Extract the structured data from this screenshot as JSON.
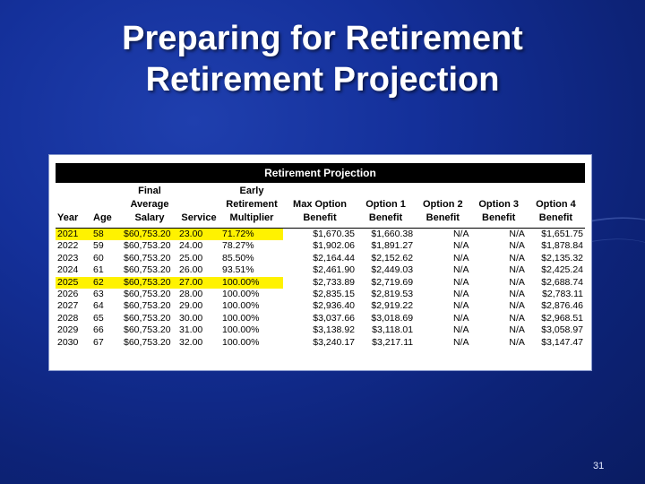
{
  "slide": {
    "title_line1": "Preparing for Retirement",
    "title_line2": "Retirement Projection",
    "page_number": "31"
  },
  "table": {
    "header": "Retirement Projection",
    "columns": [
      "Year",
      "Age",
      "Final\nAverage\nSalary",
      "Service",
      "Early\nRetirement\nMultiplier",
      "Max Option\nBenefit",
      "Option 1\nBenefit",
      "Option 2\nBenefit",
      "Option 3\nBenefit",
      "Option 4\nBenefit"
    ],
    "highlight_color": "#fff200",
    "highlighted_rows": [
      0,
      4
    ],
    "rows": [
      [
        "2021",
        "58",
        "$60,753.20",
        "23.00",
        "71.72%",
        "$1,670.35",
        "$1,660.38",
        "N/A",
        "N/A",
        "$1,651.75"
      ],
      [
        "2022",
        "59",
        "$60,753.20",
        "24.00",
        "78.27%",
        "$1,902.06",
        "$1,891.27",
        "N/A",
        "N/A",
        "$1,878.84"
      ],
      [
        "2023",
        "60",
        "$60,753.20",
        "25.00",
        "85.50%",
        "$2,164.44",
        "$2,152.62",
        "N/A",
        "N/A",
        "$2,135.32"
      ],
      [
        "2024",
        "61",
        "$60,753.20",
        "26.00",
        "93.51%",
        "$2,461.90",
        "$2,449.03",
        "N/A",
        "N/A",
        "$2,425.24"
      ],
      [
        "2025",
        "62",
        "$60,753.20",
        "27.00",
        "100.00%",
        "$2,733.89",
        "$2,719.69",
        "N/A",
        "N/A",
        "$2,688.74"
      ],
      [
        "2026",
        "63",
        "$60,753.20",
        "28.00",
        "100.00%",
        "$2,835.15",
        "$2,819.53",
        "N/A",
        "N/A",
        "$2,783.11"
      ],
      [
        "2027",
        "64",
        "$60,753.20",
        "29.00",
        "100.00%",
        "$2,936.40",
        "$2,919.22",
        "N/A",
        "N/A",
        "$2,876.46"
      ],
      [
        "2028",
        "65",
        "$60,753.20",
        "30.00",
        "100.00%",
        "$3,037.66",
        "$3,018.69",
        "N/A",
        "N/A",
        "$2,968.51"
      ],
      [
        "2029",
        "66",
        "$60,753.20",
        "31.00",
        "100.00%",
        "$3,138.92",
        "$3,118.01",
        "N/A",
        "N/A",
        "$3,058.97"
      ],
      [
        "2030",
        "67",
        "$60,753.20",
        "32.00",
        "100.00%",
        "$3,240.17",
        "$3,217.11",
        "N/A",
        "N/A",
        "$3,147.47"
      ]
    ]
  }
}
